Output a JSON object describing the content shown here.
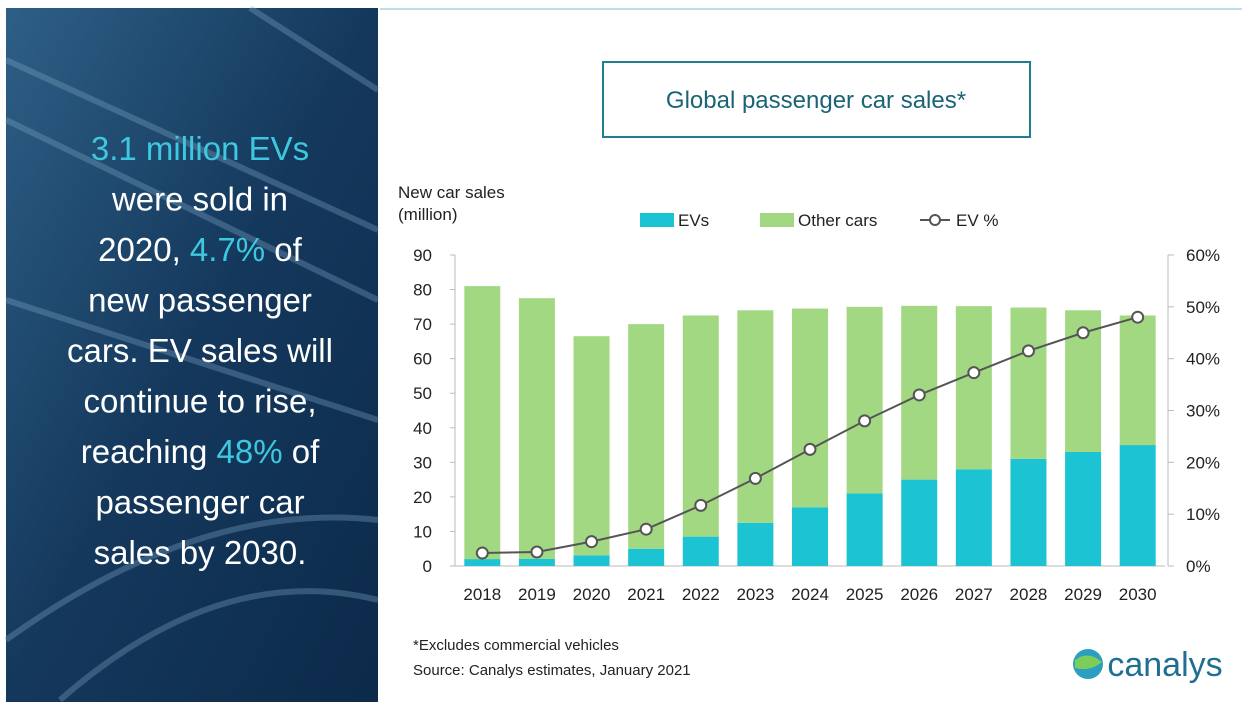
{
  "panel": {
    "highlight_color": "#3ec8e0",
    "lines": [
      [
        {
          "text": "3.1 million EVs",
          "highlight": true
        }
      ],
      [
        {
          "text": "were sold in"
        }
      ],
      [
        {
          "text": "2020, "
        },
        {
          "text": "4.7%",
          "highlight": true
        },
        {
          "text": " of"
        }
      ],
      [
        {
          "text": "new passenger"
        }
      ],
      [
        {
          "text": "cars. EV sales will"
        }
      ],
      [
        {
          "text": "continue to rise,"
        }
      ],
      [
        {
          "text": "reaching "
        },
        {
          "text": "48%",
          "highlight": true
        },
        {
          "text": " of"
        }
      ],
      [
        {
          "text": "passenger car"
        }
      ],
      [
        {
          "text": "sales by 2030."
        }
      ]
    ]
  },
  "chart_data": {
    "type": "bar",
    "stacked": true,
    "title": "Global passenger car sales*",
    "ylabel": [
      "New car sales",
      "(million)"
    ],
    "categories": [
      "2018",
      "2019",
      "2020",
      "2021",
      "2022",
      "2023",
      "2024",
      "2025",
      "2026",
      "2027",
      "2028",
      "2029",
      "2030"
    ],
    "series": [
      {
        "name": "EVs",
        "color": "#1cc3d3",
        "values": [
          2.0,
          2.1,
          3.1,
          5.0,
          8.5,
          12.5,
          17,
          21,
          25,
          28,
          31,
          33,
          35
        ]
      },
      {
        "name": "Other cars",
        "color": "#a3d883",
        "values": [
          79,
          75.4,
          63.4,
          65,
          64,
          61.5,
          57.5,
          54,
          50.3,
          47.2,
          43.8,
          41,
          37.5
        ]
      },
      {
        "name": "EV %",
        "type": "line",
        "axis": "y2",
        "color": "#555555",
        "values": [
          2.5,
          2.7,
          4.7,
          7.1,
          11.7,
          16.9,
          22.5,
          28,
          33,
          37.3,
          41.5,
          45,
          48
        ]
      }
    ],
    "ylim": [
      0,
      90
    ],
    "yticks": [
      0,
      10,
      20,
      30,
      40,
      50,
      60,
      70,
      80,
      90
    ],
    "y2lim": [
      0,
      60
    ],
    "y2ticks": [
      {
        "value": 0,
        "label": "0%"
      },
      {
        "value": 10,
        "label": "10%"
      },
      {
        "value": 20,
        "label": "20%"
      },
      {
        "value": 30,
        "label": "30%"
      },
      {
        "value": 40,
        "label": "40%"
      },
      {
        "value": 50,
        "label": "50%"
      },
      {
        "value": 60,
        "label": "60%"
      }
    ],
    "footnote": "*Excludes commercial vehicles",
    "source": "Source: Canalys estimates, January 2021",
    "logo": "canalys"
  }
}
